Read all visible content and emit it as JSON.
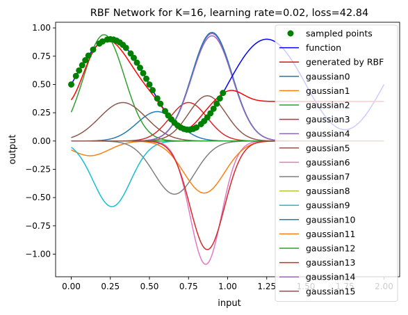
{
  "chart_data": {
    "type": "line",
    "title": "RBF Network for K=16, learning rate=0.02, loss=42.84",
    "xlabel": "input",
    "ylabel": "output",
    "xlim": [
      -0.1,
      2.1
    ],
    "ylim": [
      -1.2,
      1.05
    ],
    "xticks": [
      0.0,
      0.25,
      0.5,
      0.75,
      1.0,
      1.25,
      1.5,
      1.75,
      2.0
    ],
    "xtick_labels": [
      "0.00",
      "0.25",
      "0.50",
      "0.75",
      "1.00",
      "1.25",
      "1.50",
      "1.75",
      "2.00"
    ],
    "yticks": [
      1.0,
      0.75,
      0.5,
      0.25,
      0.0,
      -0.25,
      -0.5,
      -0.75,
      -1.0
    ],
    "ytick_labels": [
      "1.00",
      "0.75",
      "0.50",
      "0.25",
      "0.00",
      "−0.25",
      "−0.50",
      "−0.75",
      "−1.00"
    ],
    "grid": false,
    "legend_position": "right",
    "function": {
      "name": "function",
      "color": "#0000ff",
      "formula": "0.5 + 0.4*sin(2*pi*x)"
    },
    "sampled_points": {
      "name": "sampled points",
      "color": "#008000",
      "x": [
        0.0,
        0.03,
        0.05,
        0.07,
        0.09,
        0.11,
        0.14,
        0.18,
        0.2,
        0.23,
        0.25,
        0.27,
        0.29,
        0.31,
        0.33,
        0.35,
        0.38,
        0.4,
        0.42,
        0.44,
        0.46,
        0.48,
        0.5,
        0.52,
        0.55,
        0.57,
        0.6,
        0.62,
        0.64,
        0.66,
        0.68,
        0.7,
        0.72,
        0.74,
        0.76,
        0.78,
        0.8,
        0.83,
        0.85,
        0.87,
        0.89,
        0.91,
        0.93,
        0.95,
        0.97
      ]
    },
    "gaussians": [
      {
        "name": "gaussian0",
        "color": "#1f77b4",
        "amplitude": 0.26,
        "center": 0.55,
        "width": 0.13
      },
      {
        "name": "gaussian1",
        "color": "#ff7f0e",
        "amplitude": -0.13,
        "center": 0.12,
        "width": 0.12
      },
      {
        "name": "gaussian2",
        "color": "#2ca02c",
        "amplitude": 0.94,
        "center": 0.21,
        "width": 0.13
      },
      {
        "name": "gaussian3",
        "color": "#d62728",
        "amplitude": 0.34,
        "center": 0.75,
        "width": 0.12
      },
      {
        "name": "gaussian4",
        "color": "#9467bd",
        "amplitude": 0.95,
        "center": 0.9,
        "width": 0.13
      },
      {
        "name": "gaussian5",
        "color": "#8c564b",
        "amplitude": 0.34,
        "center": 0.33,
        "width": 0.15
      },
      {
        "name": "gaussian6",
        "color": "#e377c2",
        "amplitude": -1.09,
        "center": 0.86,
        "width": 0.1
      },
      {
        "name": "gaussian7",
        "color": "#7f7f7f",
        "amplitude": -0.47,
        "center": 0.66,
        "width": 0.13
      },
      {
        "name": "gaussian8",
        "color": "#bcbd22",
        "amplitude": 0.0,
        "center": 1.0,
        "width": 0.1
      },
      {
        "name": "gaussian9",
        "color": "#17becf",
        "amplitude": -0.58,
        "center": 0.26,
        "width": 0.12
      },
      {
        "name": "gaussian10",
        "color": "#1f77b4",
        "amplitude": 0.96,
        "center": 0.9,
        "width": 0.13
      },
      {
        "name": "gaussian11",
        "color": "#ff7f0e",
        "amplitude": -0.46,
        "center": 0.85,
        "width": 0.13
      },
      {
        "name": "gaussian12",
        "color": "#2ca02c",
        "amplitude": 0.0,
        "center": 1.0,
        "width": 0.1
      },
      {
        "name": "gaussian13",
        "color": "#d62728",
        "amplitude": -0.96,
        "center": 0.87,
        "width": 0.11
      },
      {
        "name": "gaussian14",
        "color": "#9467bd",
        "amplitude": 0.93,
        "center": 0.9,
        "width": 0.13
      },
      {
        "name": "gaussian15",
        "color": "#8c564b",
        "amplitude": 0.4,
        "center": 0.87,
        "width": 0.12
      }
    ],
    "generated_by_rbf": {
      "name": "generated by RBF",
      "color": "#ff0000",
      "bias": 0.35
    },
    "legend_entries": [
      {
        "label": "sampled points",
        "color": "#008000",
        "marker": "dot"
      },
      {
        "label": "function",
        "color": "#0000ff",
        "marker": "line"
      },
      {
        "label": "generated by RBF",
        "color": "#ff0000",
        "marker": "line"
      },
      {
        "label": "gaussian0",
        "color": "#1f77b4",
        "marker": "line"
      },
      {
        "label": "gaussian1",
        "color": "#ff7f0e",
        "marker": "line"
      },
      {
        "label": "gaussian2",
        "color": "#2ca02c",
        "marker": "line"
      },
      {
        "label": "gaussian3",
        "color": "#d62728",
        "marker": "line"
      },
      {
        "label": "gaussian4",
        "color": "#9467bd",
        "marker": "line"
      },
      {
        "label": "gaussian5",
        "color": "#8c564b",
        "marker": "line"
      },
      {
        "label": "gaussian6",
        "color": "#e377c2",
        "marker": "line"
      },
      {
        "label": "gaussian7",
        "color": "#7f7f7f",
        "marker": "line"
      },
      {
        "label": "gaussian8",
        "color": "#bcbd22",
        "marker": "line"
      },
      {
        "label": "gaussian9",
        "color": "#17becf",
        "marker": "line"
      },
      {
        "label": "gaussian10",
        "color": "#1f77b4",
        "marker": "line"
      },
      {
        "label": "gaussian11",
        "color": "#ff7f0e",
        "marker": "line"
      },
      {
        "label": "gaussian12",
        "color": "#2ca02c",
        "marker": "line"
      },
      {
        "label": "gaussian13",
        "color": "#d62728",
        "marker": "line"
      },
      {
        "label": "gaussian14",
        "color": "#9467bd",
        "marker": "line"
      },
      {
        "label": "gaussian15",
        "color": "#8c564b",
        "marker": "line"
      }
    ]
  }
}
